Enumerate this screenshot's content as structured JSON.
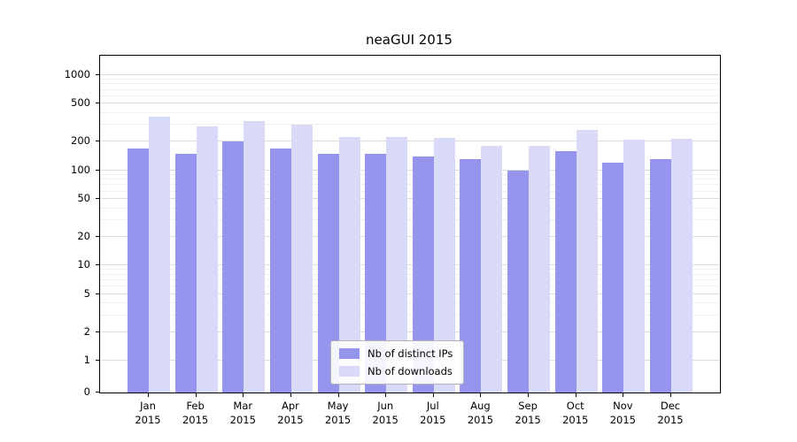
{
  "chart_data": {
    "type": "bar",
    "title": "neaGUI 2015",
    "categories": [
      "Jan",
      "Feb",
      "Mar",
      "Apr",
      "May",
      "Jun",
      "Jul",
      "Aug",
      "Sep",
      "Oct",
      "Nov",
      "Dec"
    ],
    "year": "2015",
    "series": [
      {
        "name": "Nb of distinct IPs",
        "color": "#9595ee",
        "values": [
          170,
          150,
          200,
          170,
          150,
          150,
          140,
          130,
          100,
          160,
          120,
          130
        ]
      },
      {
        "name": "Nb of downloads",
        "color": "#d9d9f8",
        "values": [
          370,
          290,
          330,
          300,
          225,
          225,
          220,
          180,
          180,
          265,
          210,
          215
        ]
      }
    ],
    "yscale": "symlog",
    "yticks": [
      0,
      1,
      2,
      5,
      10,
      20,
      50,
      100,
      200,
      500,
      1000
    ],
    "ylim": [
      0,
      1600
    ],
    "grid": true,
    "legend_position": "lower center",
    "colors": {
      "grid_major": "#dcdcdc",
      "grid_minor": "#f0f0f0",
      "spine": "#000000"
    }
  }
}
